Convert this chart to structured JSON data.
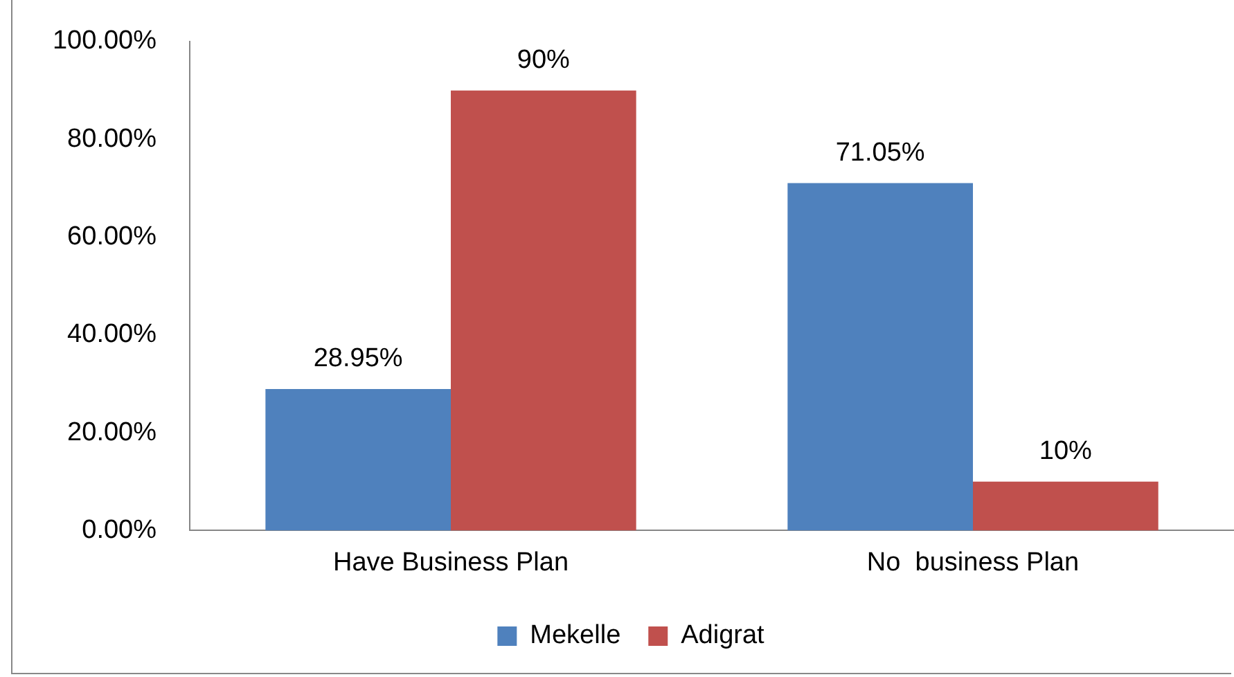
{
  "chart_data": {
    "type": "bar",
    "categories": [
      "Have Business Plan",
      "No  business Plan"
    ],
    "series": [
      {
        "name": "Mekelle",
        "color": "#4f81bd",
        "values": [
          28.95,
          71.05
        ],
        "value_labels": [
          "28.95%",
          "71.05%"
        ]
      },
      {
        "name": "Adigrat",
        "color": "#c0504d",
        "values": [
          90,
          10
        ],
        "value_labels": [
          "90%",
          "10%"
        ]
      }
    ],
    "ylim": [
      0,
      100
    ],
    "yticks": [
      {
        "value": 0,
        "label": "0.00%"
      },
      {
        "value": 20,
        "label": "20.00%"
      },
      {
        "value": 40,
        "label": "40.00%"
      },
      {
        "value": 60,
        "label": "60.00%"
      },
      {
        "value": 80,
        "label": "80.00%"
      },
      {
        "value": 100,
        "label": "100.00%"
      }
    ],
    "grid": false,
    "legend": "bottom"
  }
}
